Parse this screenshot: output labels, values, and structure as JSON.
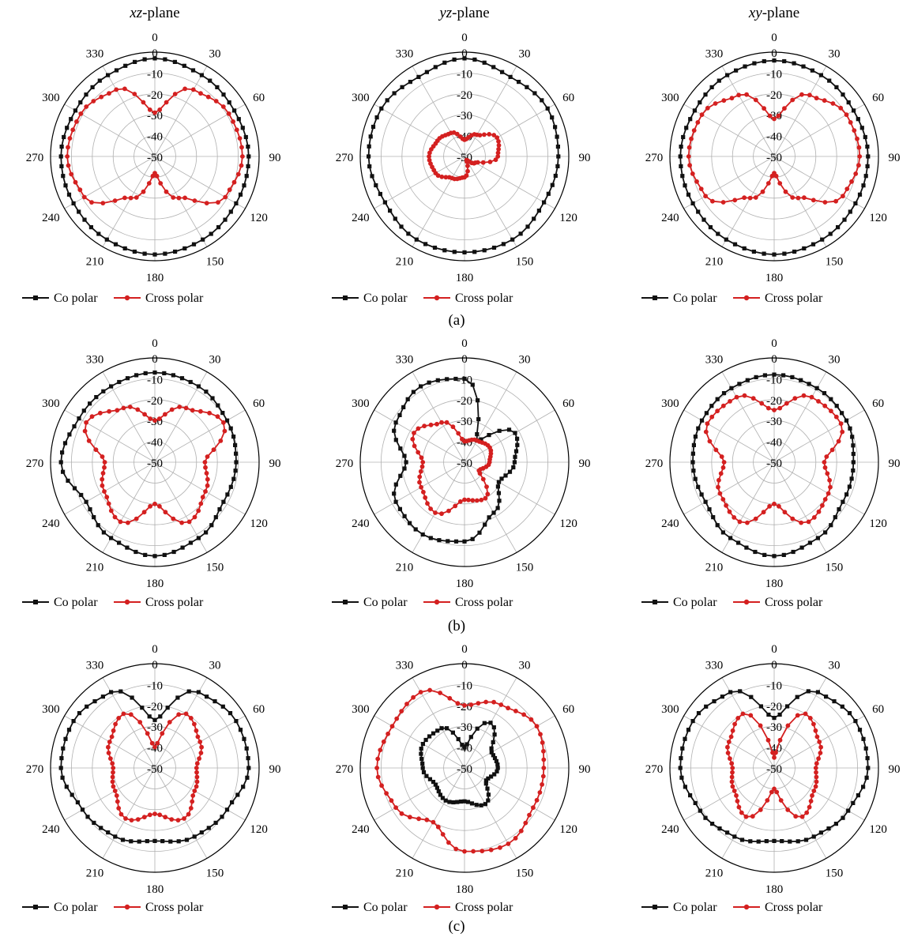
{
  "column_titles": [
    {
      "var": "xz",
      "rest": "-plane"
    },
    {
      "var": "yz",
      "rest": "-plane"
    },
    {
      "var": "xy",
      "rest": "-plane"
    }
  ],
  "row_captions": [
    "(a)",
    "(b)",
    "(c)"
  ],
  "angle_labels": [
    "0",
    "30",
    "60",
    "90",
    "120",
    "150",
    "180",
    "210",
    "240",
    "270",
    "300",
    "330"
  ],
  "radial_labels": [
    "0",
    "-10",
    "-20",
    "-30",
    "-40",
    "-50"
  ],
  "legend": {
    "co": "Co polar",
    "cross": "Cross polar"
  },
  "colors": {
    "co": "#111111",
    "cross": "#d42020",
    "grid": "#b0b0b0"
  },
  "chart_data": [
    {
      "type": "polar-line",
      "panel": "a-xz",
      "title": "xz-plane",
      "rlim": [
        -50,
        0
      ],
      "angles_deg": [
        0,
        30,
        60,
        90,
        120,
        150,
        180,
        210,
        240,
        270,
        300,
        330
      ],
      "series": [
        {
          "name": "Co polar",
          "values": [
            -3,
            -5,
            -6,
            -5,
            -5,
            -4,
            -3,
            -4,
            -5,
            -5,
            -6,
            -5
          ]
        },
        {
          "name": "Cross polar",
          "values": [
            -29,
            -13,
            -9,
            -8,
            -11,
            -27,
            -42,
            -27,
            -11,
            -8,
            -9,
            -13
          ]
        }
      ]
    },
    {
      "type": "polar-line",
      "panel": "a-yz",
      "title": "yz-plane",
      "rlim": [
        -50,
        0
      ],
      "angles_deg": [
        0,
        30,
        60,
        90,
        120,
        150,
        180,
        210,
        240,
        270,
        300,
        330
      ],
      "series": [
        {
          "name": "Co polar",
          "values": [
            -3,
            -6,
            -4,
            -5,
            -6,
            -4,
            -4,
            -4,
            -6,
            -4,
            -4,
            -6
          ]
        },
        {
          "name": "Cross polar",
          "values": [
            -42,
            -38,
            -32,
            -34,
            -44,
            -48,
            -40,
            -38,
            -34,
            -33,
            -35,
            -37
          ]
        }
      ]
    },
    {
      "type": "polar-line",
      "panel": "a-xy",
      "title": "xy-plane",
      "rlim": [
        -50,
        0
      ],
      "angles_deg": [
        0,
        30,
        60,
        90,
        120,
        150,
        180,
        210,
        240,
        270,
        300,
        330
      ],
      "series": [
        {
          "name": "Co polar",
          "values": [
            -4,
            -5,
            -6,
            -5,
            -5,
            -4,
            -3,
            -4,
            -5,
            -5,
            -6,
            -5
          ]
        },
        {
          "name": "Cross polar",
          "values": [
            -32,
            -16,
            -10,
            -9,
            -12,
            -27,
            -42,
            -27,
            -12,
            -9,
            -10,
            -16
          ]
        }
      ]
    },
    {
      "type": "polar-line",
      "panel": "b-xz",
      "title": "xz-plane",
      "rlim": [
        -50,
        0
      ],
      "angles_deg": [
        0,
        30,
        60,
        90,
        120,
        150,
        180,
        210,
        240,
        270,
        300,
        330
      ],
      "series": [
        {
          "name": "Co polar",
          "values": [
            -7,
            -8,
            -10,
            -11,
            -12,
            -8,
            -5,
            -8,
            -12,
            -5,
            -8,
            -8
          ]
        },
        {
          "name": "Cross polar",
          "values": [
            -30,
            -20,
            -12,
            -26,
            -22,
            -17,
            -30,
            -17,
            -22,
            -26,
            -12,
            -20
          ]
        }
      ]
    },
    {
      "type": "polar-line",
      "panel": "b-yz",
      "title": "yz-plane",
      "rlim": [
        -50,
        0
      ],
      "angles_deg": [
        0,
        30,
        60,
        90,
        120,
        150,
        180,
        210,
        240,
        270,
        300,
        330
      ],
      "series": [
        {
          "name": "Co polar",
          "values": [
            -10,
            -38,
            -22,
            -26,
            -31,
            -22,
            -12,
            -10,
            -12,
            -22,
            -12,
            -8
          ]
        },
        {
          "name": "Cross polar",
          "values": [
            -40,
            -38,
            -36,
            -38,
            -42,
            -30,
            -32,
            -22,
            -26,
            -30,
            -22,
            -28
          ]
        }
      ]
    },
    {
      "type": "polar-line",
      "panel": "b-xy",
      "title": "xy-plane",
      "rlim": [
        -50,
        0
      ],
      "angles_deg": [
        0,
        30,
        60,
        90,
        120,
        150,
        180,
        210,
        240,
        270,
        300,
        330
      ],
      "series": [
        {
          "name": "Co polar",
          "values": [
            -8,
            -9,
            -10,
            -12,
            -12,
            -8,
            -5,
            -8,
            -12,
            -11,
            -10,
            -9
          ]
        },
        {
          "name": "Cross polar",
          "values": [
            -25,
            -14,
            -13,
            -26,
            -20,
            -17,
            -30,
            -17,
            -20,
            -26,
            -13,
            -14
          ]
        }
      ]
    },
    {
      "type": "polar-line",
      "panel": "c-xz",
      "title": "xz-plane",
      "rlim": [
        -50,
        0
      ],
      "angles_deg": [
        0,
        30,
        60,
        90,
        120,
        150,
        180,
        210,
        240,
        270,
        300,
        330
      ],
      "series": [
        {
          "name": "Co polar",
          "values": [
            -27,
            -8,
            -5,
            -5,
            -10,
            -12,
            -15,
            -12,
            -10,
            -5,
            -5,
            -8
          ]
        },
        {
          "name": "Cross polar",
          "values": [
            -40,
            -20,
            -25,
            -30,
            -28,
            -22,
            -28,
            -22,
            -28,
            -30,
            -25,
            -20
          ]
        }
      ]
    },
    {
      "type": "polar-line",
      "panel": "c-yz",
      "title": "yz-plane",
      "rlim": [
        -50,
        0
      ],
      "angles_deg": [
        0,
        30,
        60,
        90,
        120,
        150,
        180,
        210,
        240,
        270,
        300,
        330
      ],
      "series": [
        {
          "name": "Co polar",
          "values": [
            -40,
            -25,
            -35,
            -34,
            -38,
            -30,
            -34,
            -32,
            -34,
            -30,
            -27,
            -28
          ]
        },
        {
          "name": "Cross polar",
          "values": [
            -20,
            -15,
            -10,
            -12,
            -12,
            -8,
            -10,
            -20,
            -12,
            -8,
            -10,
            -8
          ]
        }
      ]
    },
    {
      "type": "polar-line",
      "panel": "c-xy",
      "title": "xy-plane",
      "rlim": [
        -50,
        0
      ],
      "angles_deg": [
        0,
        30,
        60,
        90,
        120,
        150,
        180,
        210,
        240,
        270,
        300,
        330
      ],
      "series": [
        {
          "name": "Co polar",
          "values": [
            -26,
            -8,
            -5,
            -5,
            -9,
            -12,
            -15,
            -12,
            -9,
            -5,
            -5,
            -8
          ]
        },
        {
          "name": "Cross polar",
          "values": [
            -45,
            -20,
            -25,
            -30,
            -28,
            -23,
            -40,
            -23,
            -28,
            -30,
            -25,
            -20
          ]
        }
      ]
    }
  ]
}
